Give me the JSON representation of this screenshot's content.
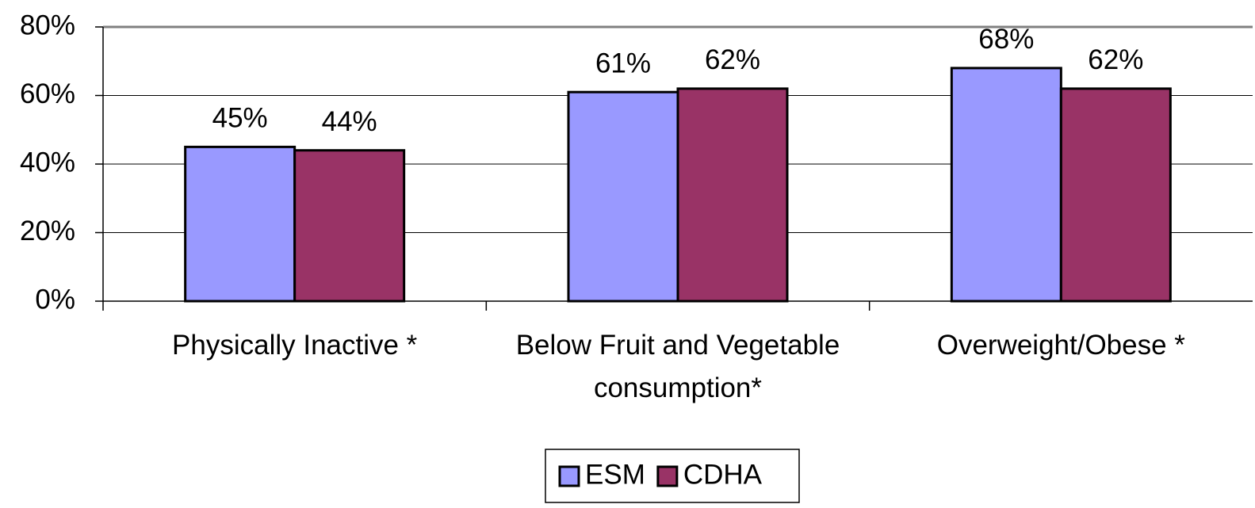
{
  "chart_data": {
    "type": "bar",
    "categories": [
      "Physically Inactive *",
      "Below Fruit and Vegetable consumption*",
      "Overweight/Obese *"
    ],
    "series": [
      {
        "name": "ESM",
        "color": "#9999ff",
        "values": [
          45,
          61,
          68
        ],
        "value_labels": [
          "45%",
          "61%",
          "68%"
        ]
      },
      {
        "name": "CDHA",
        "color": "#993366",
        "values": [
          44,
          62,
          62
        ],
        "value_labels": [
          "44%",
          "62%",
          "62%"
        ]
      }
    ],
    "ylim": [
      0,
      80
    ],
    "yticks": [
      {
        "value": 0,
        "label": "0%"
      },
      {
        "value": 20,
        "label": "20%"
      },
      {
        "value": 40,
        "label": "40%"
      },
      {
        "value": 60,
        "label": "60%"
      },
      {
        "value": 80,
        "label": "80%"
      }
    ],
    "grid": true,
    "legend": "bottom"
  }
}
